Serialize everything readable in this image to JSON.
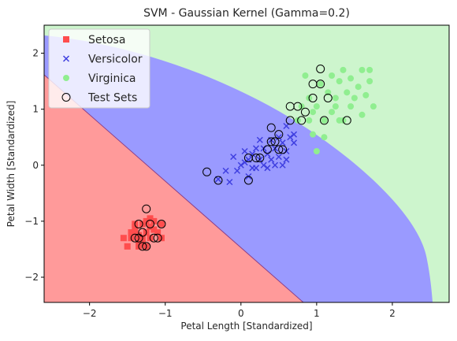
{
  "chart_data": {
    "type": "scatter",
    "title": "SVM - Gaussian Kernel (Gamma=0.2)",
    "xlabel": "Petal Length [Standardized]",
    "ylabel": "Petal Width [Standardized]",
    "xlim": [
      -2.6,
      2.75
    ],
    "ylim": [
      -2.45,
      2.5
    ],
    "xticks": [
      -2,
      -1,
      0,
      1,
      2
    ],
    "yticks": [
      -2,
      -1,
      0,
      1,
      2
    ],
    "grid": false,
    "legend_position": "top-left",
    "regions": [
      {
        "class": "Setosa",
        "color": "#ff9a9a"
      },
      {
        "class": "Versicolor",
        "color": "#9a9aff"
      },
      {
        "class": "Virginica",
        "color": "#cdf5cd"
      }
    ],
    "boundary_line_color": "#8a3f8a",
    "series": [
      {
        "name": "Setosa",
        "marker": "square",
        "color": "#ff4d4d",
        "points": [
          [
            -1.45,
            -1.3
          ],
          [
            -1.4,
            -1.2
          ],
          [
            -1.35,
            -1.35
          ],
          [
            -1.3,
            -1.3
          ],
          [
            -1.25,
            -1.2
          ],
          [
            -1.3,
            -1.05
          ],
          [
            -1.2,
            -1.3
          ],
          [
            -1.15,
            -1.15
          ],
          [
            -1.35,
            -1.45
          ],
          [
            -1.55,
            -1.3
          ],
          [
            -1.5,
            -1.45
          ],
          [
            -1.1,
            -1.2
          ],
          [
            -1.05,
            -1.3
          ],
          [
            -1.25,
            -1.0
          ],
          [
            -1.4,
            -1.1
          ],
          [
            -1.2,
            -0.95
          ],
          [
            -1.05,
            -1.05
          ],
          [
            -1.3,
            -1.4
          ],
          [
            -1.25,
            -1.45
          ],
          [
            -1.35,
            -1.25
          ],
          [
            -1.4,
            -1.05
          ],
          [
            -1.2,
            -1.1
          ],
          [
            -1.45,
            -1.2
          ],
          [
            -1.15,
            -1.0
          ]
        ]
      },
      {
        "name": "Versicolor",
        "marker": "x",
        "color": "#3f3fe0",
        "points": [
          [
            -0.3,
            -0.25
          ],
          [
            -0.15,
            -0.3
          ],
          [
            -0.1,
            0.15
          ],
          [
            0.0,
            0.0
          ],
          [
            0.05,
            0.25
          ],
          [
            0.1,
            0.1
          ],
          [
            0.15,
            -0.05
          ],
          [
            0.2,
            0.3
          ],
          [
            0.25,
            0.1
          ],
          [
            0.3,
            0.0
          ],
          [
            0.35,
            0.2
          ],
          [
            0.4,
            0.45
          ],
          [
            0.45,
            0.3
          ],
          [
            0.5,
            0.15
          ],
          [
            0.55,
            0.4
          ],
          [
            0.6,
            0.25
          ],
          [
            0.65,
            0.5
          ],
          [
            0.7,
            0.55
          ],
          [
            0.45,
            0.0
          ],
          [
            0.35,
            -0.05
          ],
          [
            0.55,
            0.0
          ],
          [
            0.2,
            -0.05
          ],
          [
            0.1,
            -0.2
          ],
          [
            -0.05,
            -0.1
          ],
          [
            0.3,
            0.3
          ],
          [
            0.6,
            0.7
          ],
          [
            0.5,
            0.5
          ],
          [
            0.15,
            0.2
          ],
          [
            0.4,
            0.1
          ],
          [
            0.7,
            0.4
          ],
          [
            -0.2,
            -0.1
          ],
          [
            0.25,
            0.45
          ],
          [
            0.05,
            0.05
          ],
          [
            0.6,
            0.1
          ]
        ]
      },
      {
        "name": "Virginica",
        "marker": "circle",
        "color": "#90ee90",
        "points": [
          [
            0.75,
            0.8
          ],
          [
            0.8,
            1.05
          ],
          [
            0.9,
            1.2
          ],
          [
            0.95,
            0.95
          ],
          [
            1.0,
            1.05
          ],
          [
            1.05,
            1.45
          ],
          [
            1.1,
            0.8
          ],
          [
            1.15,
            1.3
          ],
          [
            1.2,
            0.95
          ],
          [
            1.25,
            1.05
          ],
          [
            1.3,
            1.5
          ],
          [
            1.3,
            0.8
          ],
          [
            1.35,
            1.7
          ],
          [
            1.4,
            1.3
          ],
          [
            1.45,
            1.05
          ],
          [
            1.5,
            1.2
          ],
          [
            1.55,
            1.4
          ],
          [
            1.6,
            1.7
          ],
          [
            1.65,
            1.25
          ],
          [
            1.7,
            1.5
          ],
          [
            1.75,
            1.05
          ],
          [
            0.85,
            1.6
          ],
          [
            1.0,
            0.25
          ],
          [
            1.1,
            0.5
          ],
          [
            1.2,
            1.6
          ],
          [
            1.35,
            0.8
          ],
          [
            1.6,
            0.9
          ],
          [
            1.45,
            1.55
          ],
          [
            0.95,
            0.55
          ],
          [
            1.25,
            1.2
          ],
          [
            1.7,
            1.7
          ],
          [
            0.9,
            0.8
          ]
        ]
      }
    ],
    "test_sets": {
      "name": "Test Sets",
      "points": [
        [
          -1.25,
          -0.78
        ],
        [
          -1.35,
          -1.05
        ],
        [
          -1.3,
          -1.2
        ],
        [
          -1.2,
          -1.05
        ],
        [
          -1.15,
          -1.3
        ],
        [
          -1.35,
          -1.3
        ],
        [
          -1.3,
          -1.45
        ],
        [
          -1.05,
          -1.05
        ],
        [
          -1.25,
          -1.45
        ],
        [
          -1.1,
          -1.3
        ],
        [
          -1.4,
          -1.3
        ],
        [
          -0.45,
          -0.12
        ],
        [
          -0.3,
          -0.27
        ],
        [
          0.1,
          -0.27
        ],
        [
          0.1,
          0.13
        ],
        [
          0.2,
          0.13
        ],
        [
          0.25,
          0.13
        ],
        [
          0.35,
          0.28
        ],
        [
          0.4,
          0.42
        ],
        [
          0.45,
          0.42
        ],
        [
          0.5,
          0.55
        ],
        [
          0.5,
          0.28
        ],
        [
          0.55,
          0.28
        ],
        [
          0.4,
          0.67
        ],
        [
          0.65,
          0.8
        ],
        [
          0.65,
          1.05
        ],
        [
          0.75,
          1.05
        ],
        [
          0.8,
          0.8
        ],
        [
          0.85,
          0.95
        ],
        [
          0.95,
          1.45
        ],
        [
          1.05,
          1.45
        ],
        [
          1.05,
          1.72
        ],
        [
          1.1,
          0.8
        ],
        [
          1.15,
          1.2
        ],
        [
          1.4,
          0.8
        ],
        [
          0.95,
          1.2
        ]
      ]
    }
  }
}
